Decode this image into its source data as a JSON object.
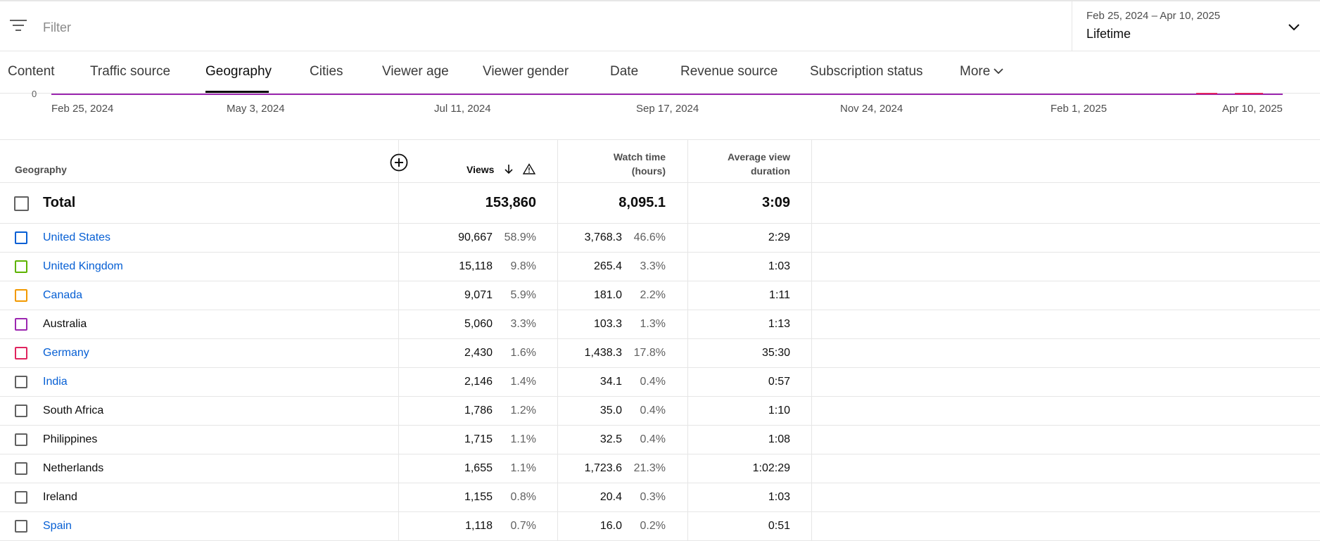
{
  "filter": {
    "placeholder": "Filter",
    "icon": "filter-icon"
  },
  "date_range": {
    "range": "Feb 25, 2024 – Apr 10, 2025",
    "preset": "Lifetime",
    "icon": "chevron-down-icon"
  },
  "tabs": [
    {
      "label": "Content",
      "active": false
    },
    {
      "label": "Traffic source",
      "active": false
    },
    {
      "label": "Geography",
      "active": true
    },
    {
      "label": "Cities",
      "active": false
    },
    {
      "label": "Viewer age",
      "active": false
    },
    {
      "label": "Viewer gender",
      "active": false
    },
    {
      "label": "Date",
      "active": false
    },
    {
      "label": "Revenue source",
      "active": false
    },
    {
      "label": "Subscription status",
      "active": false
    },
    {
      "label": "More",
      "active": false
    }
  ],
  "chart_axis": {
    "zero_label": "0",
    "ticks": [
      "Feb 25, 2024",
      "May 3, 2024",
      "Jul 11, 2024",
      "Sep 17, 2024",
      "Nov 24, 2024",
      "Feb 1, 2025",
      "Apr 10, 2025"
    ],
    "colors": {
      "line": "#9c27b0",
      "accent": "#e0245e"
    }
  },
  "table": {
    "headers": {
      "geography": "Geography",
      "views": "Views",
      "watch_time_line1": "Watch time",
      "watch_time_line2": "(hours)",
      "avg_line1": "Average view",
      "avg_line2": "duration"
    },
    "total": {
      "label": "Total",
      "views": "153,860",
      "watch_time": "8,095.1",
      "avg_duration": "3:09"
    },
    "rows": [
      {
        "country": "United States",
        "link": true,
        "color": "#065fd4",
        "views": "90,667",
        "views_pct": "58.9%",
        "watch": "3,768.3",
        "watch_pct": "46.6%",
        "avg": "2:29"
      },
      {
        "country": "United Kingdom",
        "link": true,
        "color": "#5db300",
        "views": "15,118",
        "views_pct": "9.8%",
        "watch": "265.4",
        "watch_pct": "3.3%",
        "avg": "1:03"
      },
      {
        "country": "Canada",
        "link": true,
        "color": "#f29900",
        "views": "9,071",
        "views_pct": "5.9%",
        "watch": "181.0",
        "watch_pct": "2.2%",
        "avg": "1:11"
      },
      {
        "country": "Australia",
        "link": false,
        "color": "#9c27b0",
        "views": "5,060",
        "views_pct": "3.3%",
        "watch": "103.3",
        "watch_pct": "1.3%",
        "avg": "1:13"
      },
      {
        "country": "Germany",
        "link": true,
        "color": "#e0245e",
        "views": "2,430",
        "views_pct": "1.6%",
        "watch": "1,438.3",
        "watch_pct": "17.8%",
        "avg": "35:30"
      },
      {
        "country": "India",
        "link": true,
        "color": "#606060",
        "views": "2,146",
        "views_pct": "1.4%",
        "watch": "34.1",
        "watch_pct": "0.4%",
        "avg": "0:57"
      },
      {
        "country": "South Africa",
        "link": false,
        "color": "#606060",
        "views": "1,786",
        "views_pct": "1.2%",
        "watch": "35.0",
        "watch_pct": "0.4%",
        "avg": "1:10"
      },
      {
        "country": "Philippines",
        "link": false,
        "color": "#606060",
        "views": "1,715",
        "views_pct": "1.1%",
        "watch": "32.5",
        "watch_pct": "0.4%",
        "avg": "1:08"
      },
      {
        "country": "Netherlands",
        "link": false,
        "color": "#606060",
        "views": "1,655",
        "views_pct": "1.1%",
        "watch": "1,723.6",
        "watch_pct": "21.3%",
        "avg": "1:02:29"
      },
      {
        "country": "Ireland",
        "link": false,
        "color": "#606060",
        "views": "1,155",
        "views_pct": "0.8%",
        "watch": "20.4",
        "watch_pct": "0.3%",
        "avg": "1:03"
      },
      {
        "country": "Spain",
        "link": true,
        "color": "#606060",
        "views": "1,118",
        "views_pct": "0.7%",
        "watch": "16.0",
        "watch_pct": "0.2%",
        "avg": "0:51"
      }
    ]
  }
}
